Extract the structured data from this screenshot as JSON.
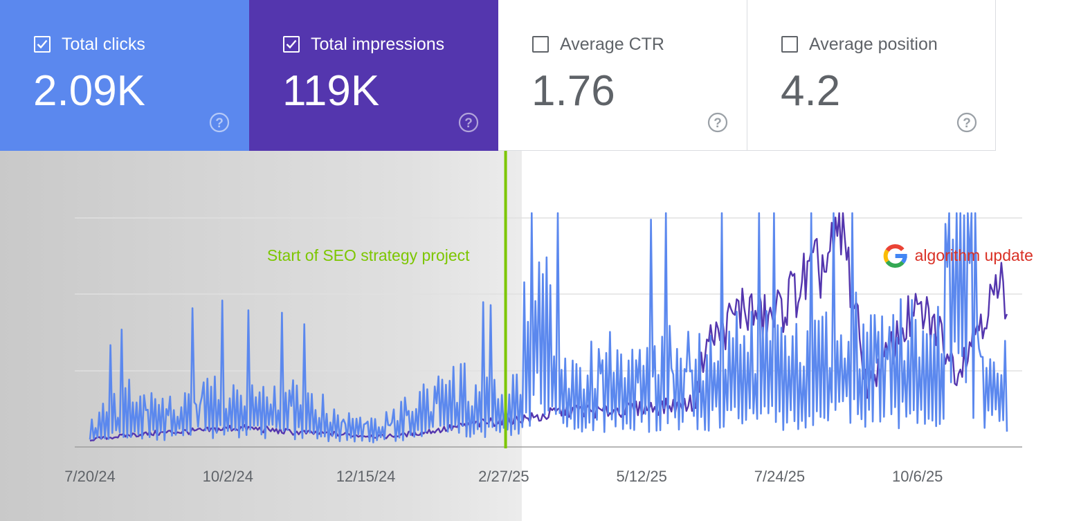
{
  "metrics": [
    {
      "label": "Total clicks",
      "value": "2.09K",
      "checked": true,
      "bg": "#5b88ee",
      "fg": "#ffffff"
    },
    {
      "label": "Total impressions",
      "value": "119K",
      "checked": true,
      "bg": "#5436ae",
      "fg": "#ffffff"
    },
    {
      "label": "Average CTR",
      "value": "1.76",
      "checked": false,
      "bg": "#ffffff",
      "fg": "#5f6368"
    },
    {
      "label": "Average position",
      "value": "4.2",
      "checked": false,
      "bg": "#ffffff",
      "fg": "#5f6368"
    }
  ],
  "icons": {
    "checkbox": "checkbox-icon",
    "help": "help-circle-icon",
    "google": "google-g-logo"
  },
  "colors": {
    "clicks": "#5b88ee",
    "impressions": "#5436ae",
    "annotation_green": "#7cc600",
    "annotation_red": "#d93025",
    "grid": "#e0e0e0",
    "axis": "#9e9e9e",
    "tick_text": "#5f6368",
    "shade": "#d6d6d6"
  },
  "chart_data": {
    "type": "line",
    "x_range": [
      "2024-07-20",
      "2025-11-24"
    ],
    "x_ticks": [
      "7/20/24",
      "10/2/24",
      "12/15/24",
      "2/27/25",
      "5/12/25",
      "7/24/25",
      "10/6/25"
    ],
    "grid": true,
    "series": [
      {
        "name": "Total clicks",
        "color": "#5b88ee",
        "x": [
          "2024-07-20",
          "2024-08-10",
          "2024-09-01",
          "2024-09-20",
          "2024-10-05",
          "2024-10-20",
          "2024-11-05",
          "2024-11-25",
          "2024-12-10",
          "2024-12-25",
          "2025-01-15",
          "2025-02-05",
          "2025-02-25",
          "2025-03-10",
          "2025-03-18",
          "2025-04-01",
          "2025-04-20",
          "2025-05-10",
          "2025-05-31",
          "2025-06-10",
          "2025-06-20",
          "2025-07-05",
          "2025-07-20",
          "2025-08-05",
          "2025-08-20",
          "2025-09-01",
          "2025-09-10",
          "2025-09-20",
          "2025-10-06",
          "2025-10-20",
          "2025-10-28",
          "2025-11-10",
          "2025-11-24"
        ],
        "values": [
          1.0,
          2.0,
          1.5,
          2.5,
          2.0,
          2.2,
          2.0,
          1.5,
          1.2,
          1.0,
          2.0,
          2.5,
          2.0,
          2.5,
          9.0,
          3.0,
          3.5,
          3.2,
          4.0,
          3.5,
          3.8,
          4.5,
          4.0,
          3.8,
          4.5,
          5.0,
          4.0,
          4.2,
          4.5,
          5.0,
          14.5,
          4.5,
          3.5
        ]
      },
      {
        "name": "Total impressions",
        "color": "#5436ae",
        "x": [
          "2024-07-20",
          "2024-08-10",
          "2024-09-01",
          "2024-09-20",
          "2024-10-05",
          "2024-10-20",
          "2024-11-05",
          "2024-11-25",
          "2024-12-10",
          "2024-12-25",
          "2025-01-15",
          "2025-02-05",
          "2025-02-25",
          "2025-03-18",
          "2025-04-01",
          "2025-04-20",
          "2025-05-10",
          "2025-05-31",
          "2025-06-10",
          "2025-06-15",
          "2025-06-25",
          "2025-07-05",
          "2025-07-20",
          "2025-08-05",
          "2025-08-20",
          "2025-08-28",
          "2025-09-05",
          "2025-09-10",
          "2025-09-20",
          "2025-10-01",
          "2025-10-10",
          "2025-10-20",
          "2025-10-28",
          "2025-11-10",
          "2025-11-24"
        ],
        "values": [
          0.5,
          0.8,
          1.0,
          1.1,
          1.3,
          1.2,
          1.0,
          0.9,
          0.8,
          0.7,
          1.0,
          1.4,
          1.8,
          2.0,
          2.5,
          2.4,
          2.6,
          2.8,
          3.0,
          7.0,
          8.0,
          9.5,
          8.5,
          11.0,
          12.5,
          14.5,
          8.0,
          4.0,
          6.0,
          8.5,
          9.0,
          7.5,
          5.0,
          9.0,
          11.0
        ]
      }
    ],
    "annotations": [
      {
        "text": "Start of SEO strategy project",
        "x": "2025-02-28",
        "color": "#7cc600"
      },
      {
        "text": "algorithm update",
        "x": "2025-09-08",
        "color": "#d93025"
      }
    ]
  }
}
